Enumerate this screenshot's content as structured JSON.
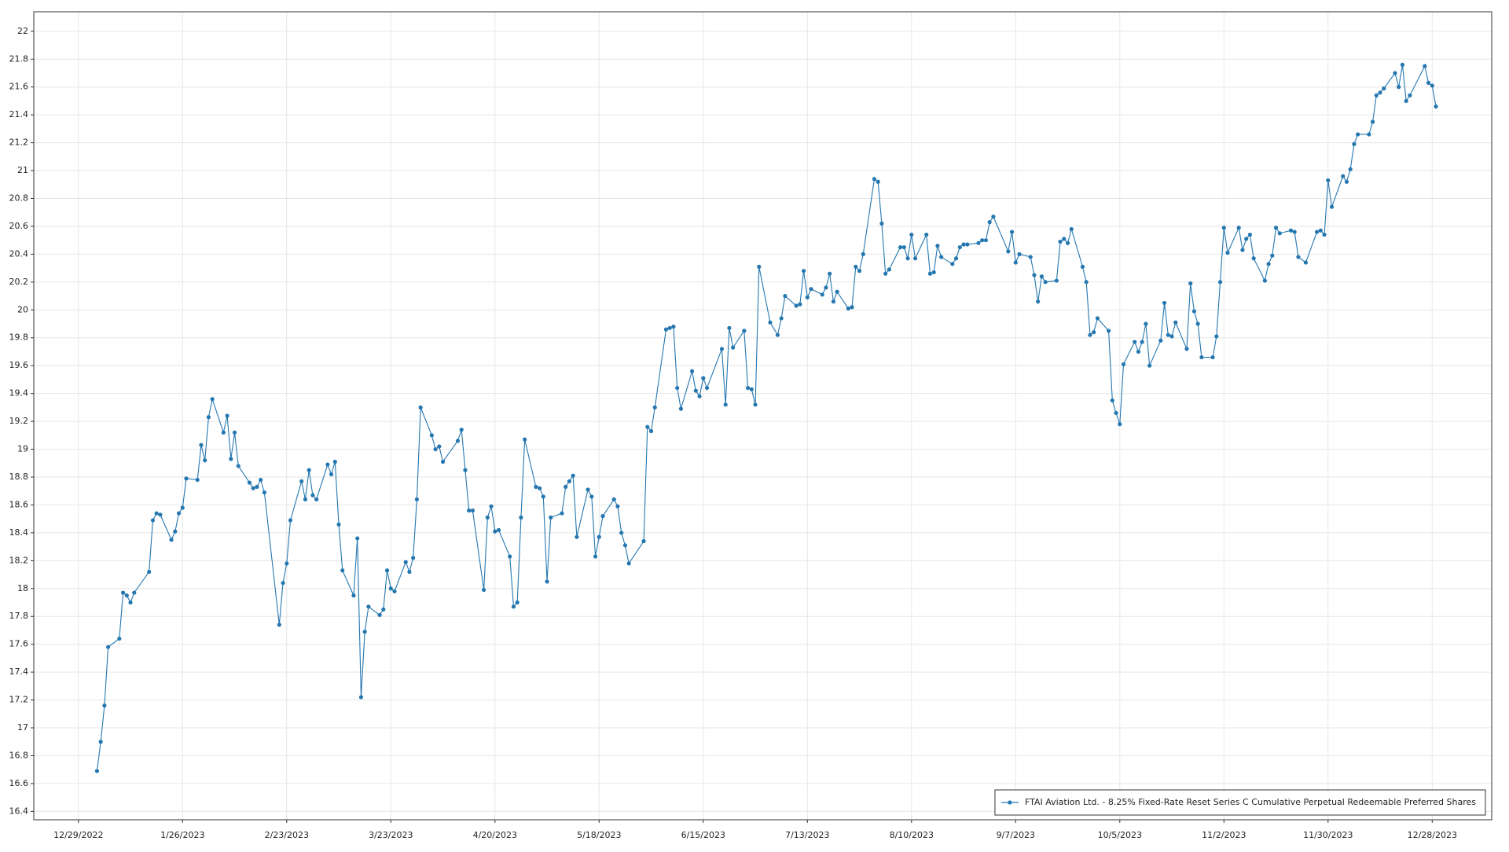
{
  "chart_data": {
    "type": "line",
    "x": [
      "1/3/2023",
      "1/4/2023",
      "1/5/2023",
      "1/6/2023",
      "1/9/2023",
      "1/10/2023",
      "1/11/2023",
      "1/12/2023",
      "1/13/2023",
      "1/17/2023",
      "1/18/2023",
      "1/19/2023",
      "1/20/2023",
      "1/23/2023",
      "1/24/2023",
      "1/25/2023",
      "1/26/2023",
      "1/27/2023",
      "1/30/2023",
      "1/31/2023",
      "2/1/2023",
      "2/2/2023",
      "2/3/2023",
      "2/6/2023",
      "2/7/2023",
      "2/8/2023",
      "2/9/2023",
      "2/10/2023",
      "2/13/2023",
      "2/14/2023",
      "2/15/2023",
      "2/16/2023",
      "2/17/2023",
      "2/21/2023",
      "2/22/2023",
      "2/23/2023",
      "2/24/2023",
      "2/27/2023",
      "2/28/2023",
      "3/1/2023",
      "3/2/2023",
      "3/3/2023",
      "3/6/2023",
      "3/7/2023",
      "3/8/2023",
      "3/9/2023",
      "3/10/2023",
      "3/13/2023",
      "3/14/2023",
      "3/15/2023",
      "3/16/2023",
      "3/17/2023",
      "3/20/2023",
      "3/21/2023",
      "3/22/2023",
      "3/23/2023",
      "3/24/2023",
      "3/27/2023",
      "3/28/2023",
      "3/29/2023",
      "3/30/2023",
      "3/31/2023",
      "4/3/2023",
      "4/4/2023",
      "4/5/2023",
      "4/6/2023",
      "4/10/2023",
      "4/11/2023",
      "4/12/2023",
      "4/13/2023",
      "4/14/2023",
      "4/17/2023",
      "4/18/2023",
      "4/19/2023",
      "4/20/2023",
      "4/21/2023",
      "4/24/2023",
      "4/25/2023",
      "4/26/2023",
      "4/27/2023",
      "4/28/2023",
      "5/1/2023",
      "5/2/2023",
      "5/3/2023",
      "5/4/2023",
      "5/5/2023",
      "5/8/2023",
      "5/9/2023",
      "5/10/2023",
      "5/11/2023",
      "5/12/2023",
      "5/15/2023",
      "5/16/2023",
      "5/17/2023",
      "5/18/2023",
      "5/19/2023",
      "5/22/2023",
      "5/23/2023",
      "5/24/2023",
      "5/25/2023",
      "5/26/2023",
      "5/30/2023",
      "5/31/2023",
      "6/1/2023",
      "6/2/2023",
      "6/5/2023",
      "6/6/2023",
      "6/7/2023",
      "6/8/2023",
      "6/9/2023",
      "6/12/2023",
      "6/13/2023",
      "6/14/2023",
      "6/15/2023",
      "6/16/2023",
      "6/20/2023",
      "6/21/2023",
      "6/22/2023",
      "6/23/2023",
      "6/26/2023",
      "6/27/2023",
      "6/28/2023",
      "6/29/2023",
      "6/30/2023",
      "7/3/2023",
      "7/5/2023",
      "7/6/2023",
      "7/7/2023",
      "7/10/2023",
      "7/11/2023",
      "7/12/2023",
      "7/13/2023",
      "7/14/2023",
      "7/17/2023",
      "7/18/2023",
      "7/19/2023",
      "7/20/2023",
      "7/21/2023",
      "7/24/2023",
      "7/25/2023",
      "7/26/2023",
      "7/27/2023",
      "7/28/2023",
      "7/31/2023",
      "8/1/2023",
      "8/2/2023",
      "8/3/2023",
      "8/4/2023",
      "8/7/2023",
      "8/8/2023",
      "8/9/2023",
      "8/10/2023",
      "8/11/2023",
      "8/14/2023",
      "8/15/2023",
      "8/16/2023",
      "8/17/2023",
      "8/18/2023",
      "8/21/2023",
      "8/22/2023",
      "8/23/2023",
      "8/24/2023",
      "8/25/2023",
      "8/28/2023",
      "8/29/2023",
      "8/30/2023",
      "8/31/2023",
      "9/1/2023",
      "9/5/2023",
      "9/6/2023",
      "9/7/2023",
      "9/8/2023",
      "9/11/2023",
      "9/12/2023",
      "9/13/2023",
      "9/14/2023",
      "9/15/2023",
      "9/18/2023",
      "9/19/2023",
      "9/20/2023",
      "9/21/2023",
      "9/22/2023",
      "9/25/2023",
      "9/26/2023",
      "9/27/2023",
      "9/28/2023",
      "9/29/2023",
      "10/2/2023",
      "10/3/2023",
      "10/4/2023",
      "10/5/2023",
      "10/6/2023",
      "10/9/2023",
      "10/10/2023",
      "10/11/2023",
      "10/12/2023",
      "10/13/2023",
      "10/16/2023",
      "10/17/2023",
      "10/18/2023",
      "10/19/2023",
      "10/20/2023",
      "10/23/2023",
      "10/24/2023",
      "10/25/2023",
      "10/26/2023",
      "10/27/2023",
      "10/30/2023",
      "10/31/2023",
      "11/1/2023",
      "11/2/2023",
      "11/3/2023",
      "11/6/2023",
      "11/7/2023",
      "11/8/2023",
      "11/9/2023",
      "11/10/2023",
      "11/13/2023",
      "11/14/2023",
      "11/15/2023",
      "11/16/2023",
      "11/17/2023",
      "11/20/2023",
      "11/21/2023",
      "11/22/2023",
      "11/24/2023",
      "11/27/2023",
      "11/28/2023",
      "11/29/2023",
      "11/30/2023",
      "12/1/2023",
      "12/4/2023",
      "12/5/2023",
      "12/6/2023",
      "12/7/2023",
      "12/8/2023",
      "12/11/2023",
      "12/12/2023",
      "12/13/2023",
      "12/14/2023",
      "12/15/2023",
      "12/18/2023",
      "12/19/2023",
      "12/20/2023",
      "12/21/2023",
      "12/22/2023",
      "12/26/2023",
      "12/27/2023",
      "12/28/2023",
      "12/29/2023"
    ],
    "series": [
      {
        "name": "FTAI Aviation Ltd. - 8.25% Fixed-Rate Reset Series C Cumulative Perpetual Redeemable Preferred Shares",
        "color": "#2577b0",
        "values": [
          16.69,
          16.9,
          17.16,
          17.58,
          17.64,
          17.97,
          17.95,
          17.9,
          17.97,
          18.12,
          18.49,
          18.54,
          18.53,
          18.35,
          18.41,
          18.54,
          18.58,
          18.79,
          18.78,
          19.03,
          18.92,
          19.23,
          19.36,
          19.12,
          19.24,
          18.93,
          19.12,
          18.88,
          18.76,
          18.72,
          18.73,
          18.78,
          18.69,
          17.74,
          18.04,
          18.18,
          18.49,
          18.77,
          18.64,
          18.85,
          18.67,
          18.64,
          18.89,
          18.82,
          18.91,
          18.46,
          18.13,
          17.95,
          18.36,
          17.22,
          17.69,
          17.87,
          17.81,
          17.85,
          18.13,
          18.0,
          17.98,
          18.19,
          18.12,
          18.22,
          18.64,
          19.3,
          19.1,
          19.0,
          19.02,
          18.91,
          19.06,
          19.14,
          18.85,
          18.56,
          18.56,
          17.99,
          18.51,
          18.59,
          18.41,
          18.42,
          18.23,
          17.87,
          17.9,
          18.51,
          19.07,
          18.73,
          18.72,
          18.66,
          18.05,
          18.51,
          18.54,
          18.73,
          18.77,
          18.81,
          18.37,
          18.71,
          18.66,
          18.23,
          18.37,
          18.52,
          18.64,
          18.59,
          18.4,
          18.31,
          18.18,
          18.34,
          19.16,
          19.13,
          19.3,
          19.86,
          19.87,
          19.88,
          19.44,
          19.29,
          19.56,
          19.42,
          19.38,
          19.51,
          19.44,
          19.72,
          19.32,
          19.87,
          19.73,
          19.85,
          19.44,
          19.43,
          19.32,
          20.31,
          19.91,
          19.82,
          19.94,
          20.1,
          20.03,
          20.04,
          20.28,
          20.09,
          20.15,
          20.11,
          20.16,
          20.26,
          20.06,
          20.13,
          20.01,
          20.02,
          20.31,
          20.28,
          20.4,
          20.94,
          20.92,
          20.62,
          20.26,
          20.29,
          20.45,
          20.45,
          20.37,
          20.54,
          20.37,
          20.54,
          20.26,
          20.27,
          20.46,
          20.38,
          20.33,
          20.37,
          20.45,
          20.47,
          20.47,
          20.48,
          20.5,
          20.5,
          20.63,
          20.67,
          20.42,
          20.56,
          20.34,
          20.4,
          20.38,
          20.25,
          20.06,
          20.24,
          20.2,
          20.21,
          20.49,
          20.51,
          20.48,
          20.58,
          20.31,
          20.2,
          19.82,
          19.84,
          19.94,
          19.85,
          19.35,
          19.26,
          19.18,
          19.61,
          19.77,
          19.7,
          19.77,
          19.9,
          19.6,
          19.78,
          20.05,
          19.82,
          19.81,
          19.91,
          19.72,
          20.19,
          19.99,
          19.9,
          19.66,
          19.66,
          19.81,
          20.2,
          20.59,
          20.41,
          20.59,
          20.43,
          20.51,
          20.54,
          20.37,
          20.21,
          20.33,
          20.39,
          20.59,
          20.55,
          20.57,
          20.56,
          20.38,
          20.34,
          20.56,
          20.57,
          20.54,
          20.93,
          20.74,
          20.96,
          20.92,
          21.01,
          21.19,
          21.26,
          21.26,
          21.35,
          21.54,
          21.56,
          21.59,
          21.7,
          21.6,
          21.76,
          21.5,
          21.54,
          21.75,
          21.63,
          21.61,
          21.46
        ]
      }
    ],
    "xlim": [
      "12/17/2022",
      "1/13/2024"
    ],
    "xticks": [
      "12/29/2022",
      "1/26/2023",
      "2/23/2023",
      "3/23/2023",
      "4/20/2023",
      "5/18/2023",
      "6/15/2023",
      "7/13/2023",
      "8/10/2023",
      "9/7/2023",
      "10/5/2023",
      "11/2/2023",
      "11/30/2023",
      "12/28/2023"
    ],
    "ylim": [
      16.34,
      22.14
    ],
    "yticks": [
      16.4,
      16.6,
      16.8,
      17,
      17.2,
      17.4,
      17.6,
      17.8,
      18,
      18.2,
      18.4,
      18.6,
      18.8,
      19,
      19.2,
      19.4,
      19.6,
      19.8,
      20,
      20.2,
      20.4,
      20.6,
      20.8,
      21,
      21.2,
      21.4,
      21.6,
      21.8,
      22
    ],
    "grid": true,
    "legend": "bottom-right"
  }
}
